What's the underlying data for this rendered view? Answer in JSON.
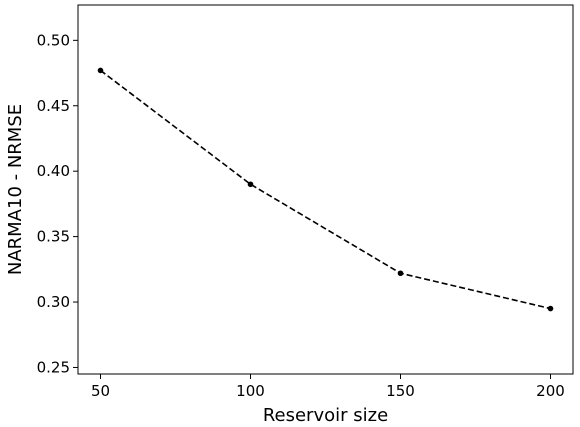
{
  "chart_data": {
    "type": "line",
    "title": "",
    "xlabel": "Reservoir size",
    "ylabel": "NARMA10 - NRMSE",
    "x": [
      50,
      100,
      150,
      200
    ],
    "series": [
      {
        "values": [
          0.477,
          0.39,
          0.322,
          0.295
        ],
        "color": "#000000",
        "style": "dashed",
        "marker": "circle"
      }
    ],
    "xticks": [
      50,
      100,
      150,
      200
    ],
    "xtick_labels": [
      "50",
      "100",
      "150",
      "200"
    ],
    "yticks": [
      0.25,
      0.3,
      0.35,
      0.4,
      0.45,
      0.5
    ],
    "ytick_labels": [
      "0.25",
      "0.30",
      "0.35",
      "0.40",
      "0.45",
      "0.50"
    ],
    "xlim": [
      42.5,
      207.5
    ],
    "ylim": [
      0.245,
      0.527
    ],
    "grid": false,
    "legend": false
  }
}
